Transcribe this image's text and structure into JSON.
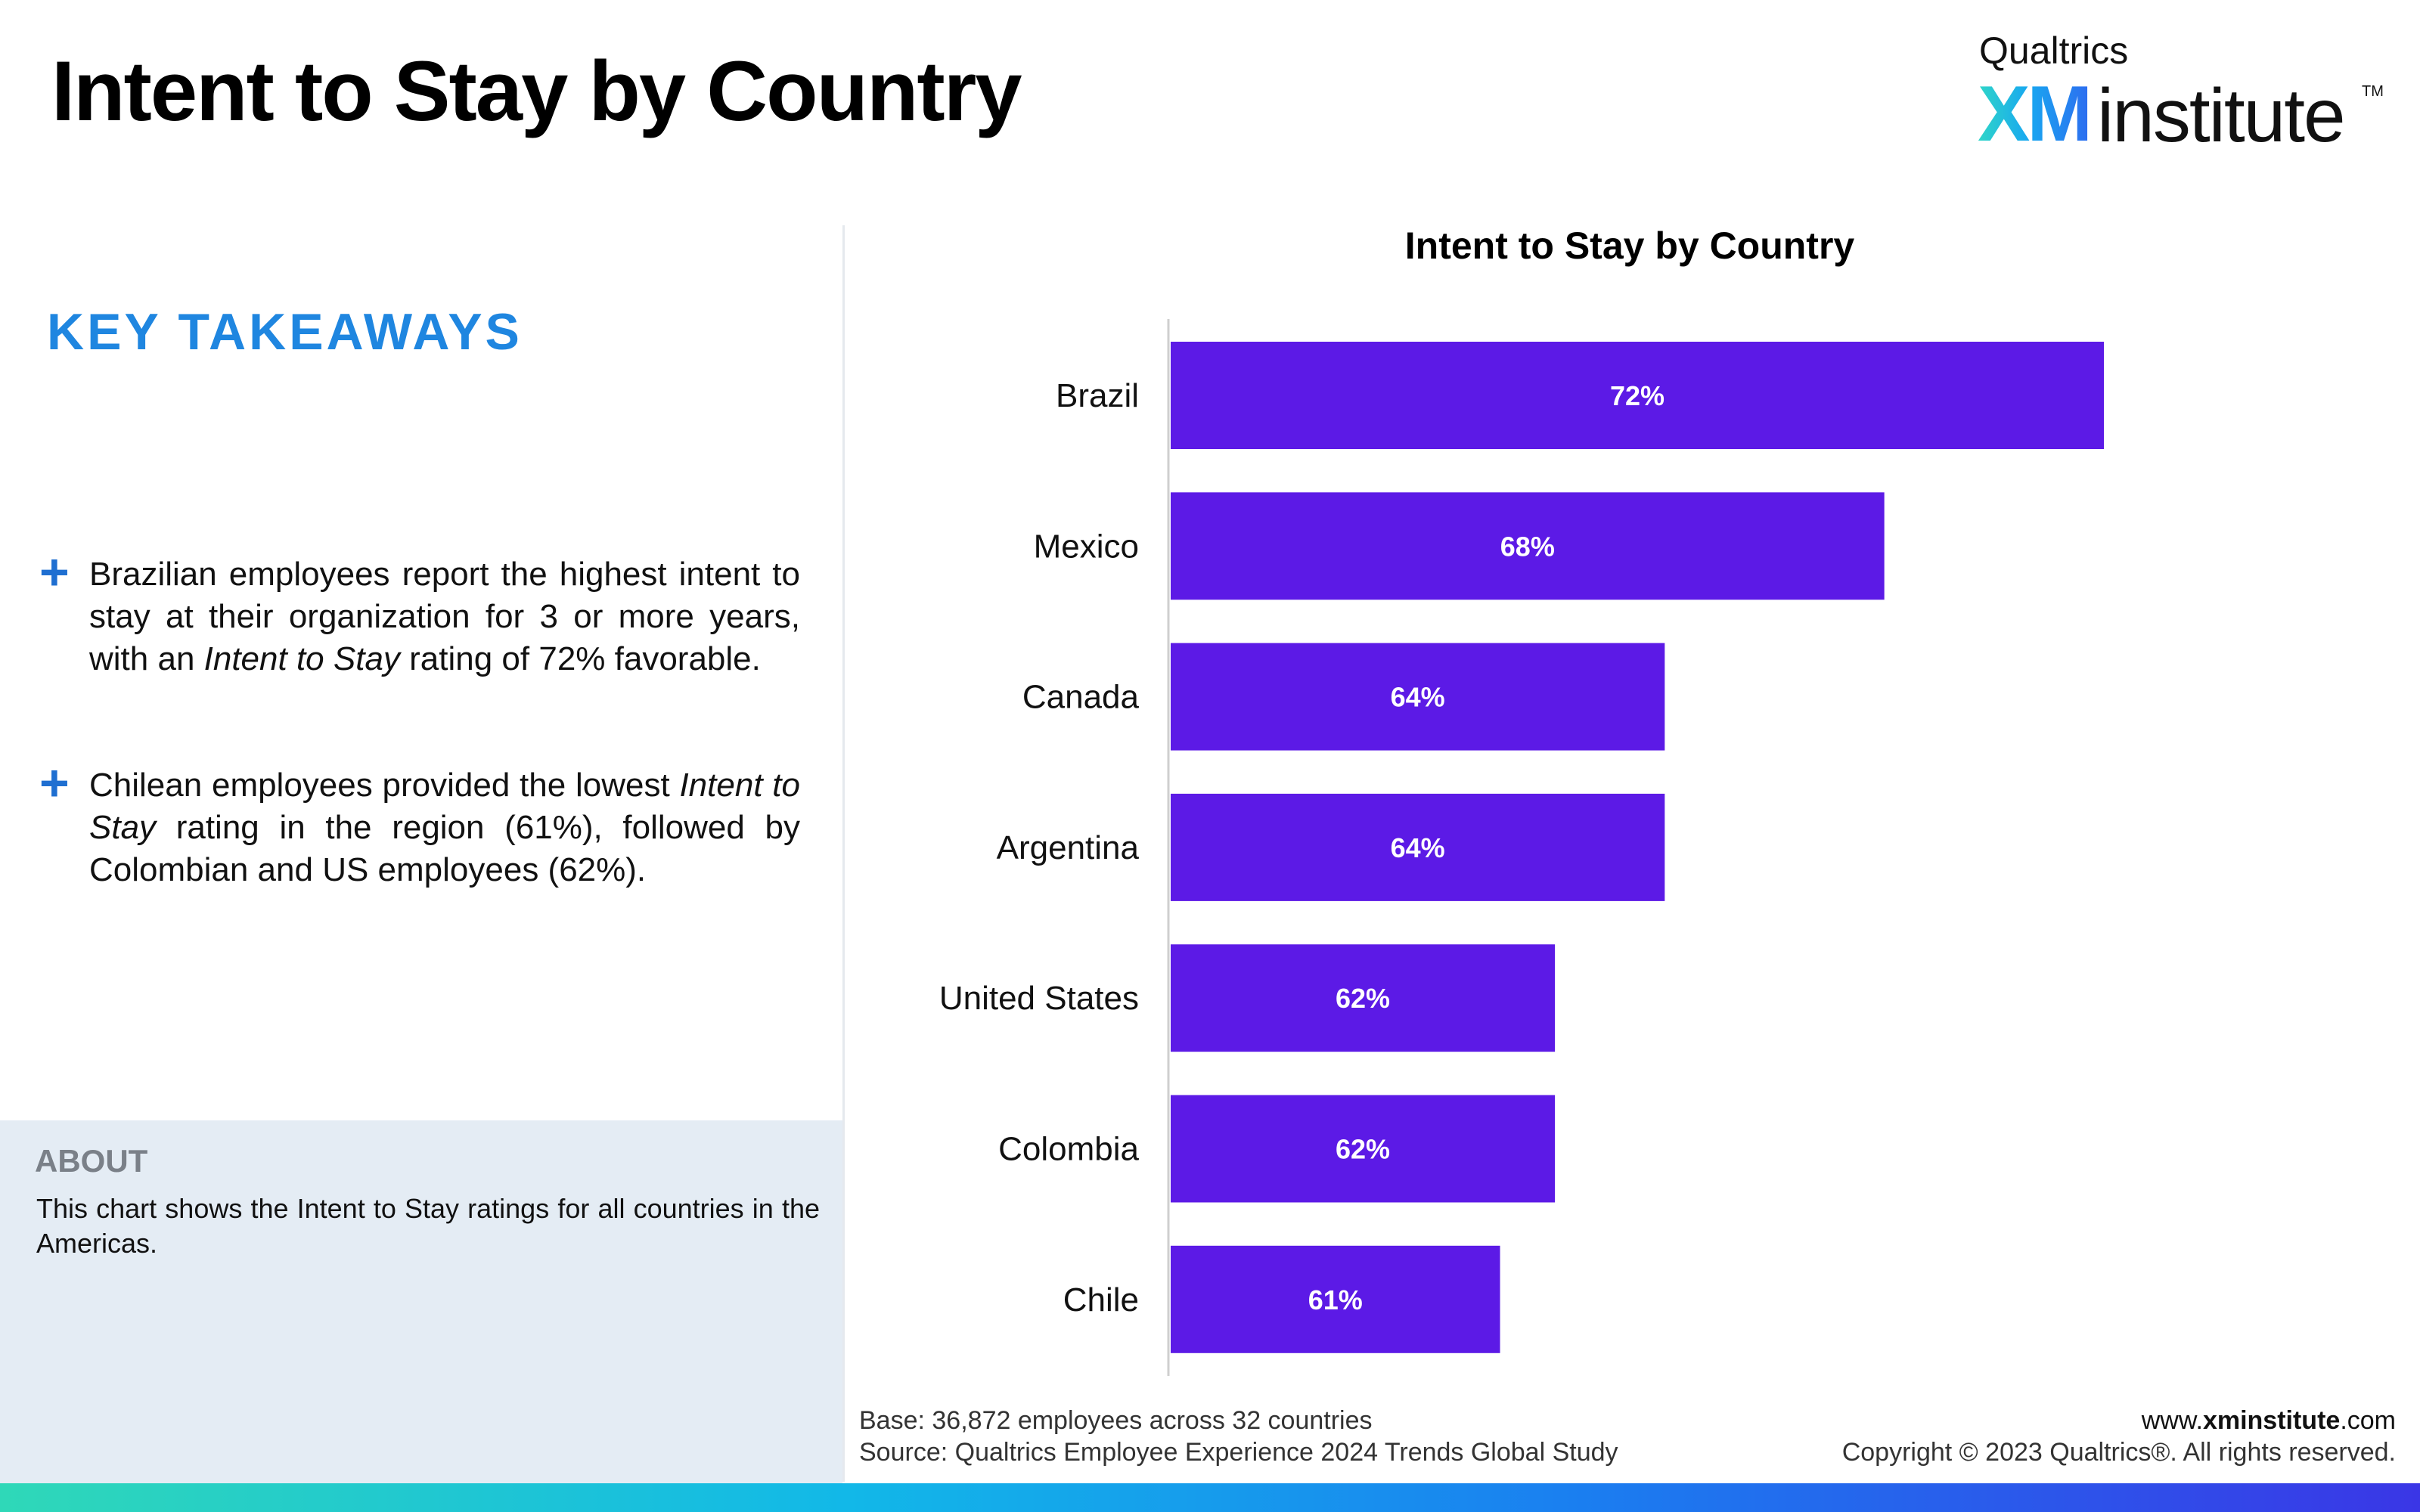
{
  "page": {
    "title": "Intent to Stay by Country"
  },
  "logo": {
    "brand": "Qualtrics",
    "xm": "XM",
    "institute": "institute",
    "tm": "TM"
  },
  "takeaways": {
    "heading": "KEY TAKEAWAYS",
    "plus_symbol": "+",
    "items": [
      {
        "before": "Brazilian employees report the highest intent to stay at their organization for 3 or more years, with an ",
        "emphasis": "Intent to Stay",
        "after": " rating of 72% favorable."
      },
      {
        "before": "Chilean employees provided the lowest ",
        "emphasis": "Intent to Stay",
        "after": " rating in the region (61%), followed by Colombian and US employees (62%)."
      }
    ]
  },
  "about": {
    "heading": "ABOUT",
    "text": "This chart shows the Intent to Stay ratings for all countries in the Americas."
  },
  "chart_data": {
    "type": "bar",
    "orientation": "horizontal",
    "title": "Intent to Stay by Country",
    "categories": [
      "Brazil",
      "Mexico",
      "Canada",
      "Argentina",
      "United States",
      "Colombia",
      "Chile"
    ],
    "values": [
      72,
      68,
      64,
      64,
      62,
      62,
      61
    ],
    "value_labels": [
      "72%",
      "68%",
      "64%",
      "64%",
      "62%",
      "62%",
      "61%"
    ],
    "xlim": [
      55,
      72
    ],
    "bar_color": "#5c1ae6",
    "grid": false,
    "legend": "none"
  },
  "footer": {
    "base": "Base: 36,872 employees across 32 countries",
    "source": "Source: Qualtrics Employee Experience 2024 Trends Global Study",
    "url_prefix": "www.",
    "url_bold": "xminstitute",
    "url_suffix": ".com",
    "copyright": "Copyright © 2023 Qualtrics®. All rights reserved."
  },
  "colors": {
    "accent_blue": "#1f86e0",
    "bar_purple": "#5c1ae6",
    "about_panel_bg": "#e4ecf4"
  }
}
